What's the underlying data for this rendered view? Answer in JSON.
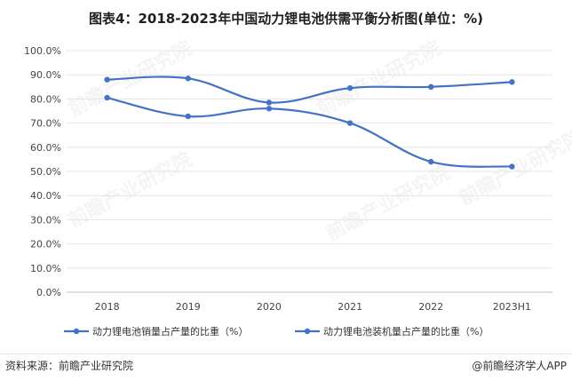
{
  "title": "图表4：2018-2023年中国动力锂电池供需平衡分析图(单位：%)",
  "source": "资料来源：前瞻产业研究院",
  "brand": "@前瞻经济学人APP",
  "watermark": "前瞻产业研究院",
  "colors": {
    "series": "#4472c4",
    "grid": "#e5e5e5",
    "axis": "#bfbfbf"
  },
  "chart_data": {
    "type": "line",
    "categories": [
      "2018",
      "2019",
      "2020",
      "2021",
      "2022",
      "2023H1"
    ],
    "yticks": [
      "0.0%",
      "10.0%",
      "20.0%",
      "30.0%",
      "40.0%",
      "50.0%",
      "60.0%",
      "70.0%",
      "80.0%",
      "90.0%",
      "100.0%"
    ],
    "ylim": [
      0,
      100
    ],
    "grid": true,
    "legend_position": "bottom",
    "series": [
      {
        "name": "动力锂电池销量占产量的比重（%）",
        "values": [
          80.5,
          72.8,
          76.0,
          70.0,
          54.0,
          52.0
        ]
      },
      {
        "name": "动力锂电池装机量占产量的比重（%）",
        "values": [
          88.0,
          88.5,
          78.5,
          84.5,
          85.0,
          87.0
        ]
      }
    ]
  }
}
